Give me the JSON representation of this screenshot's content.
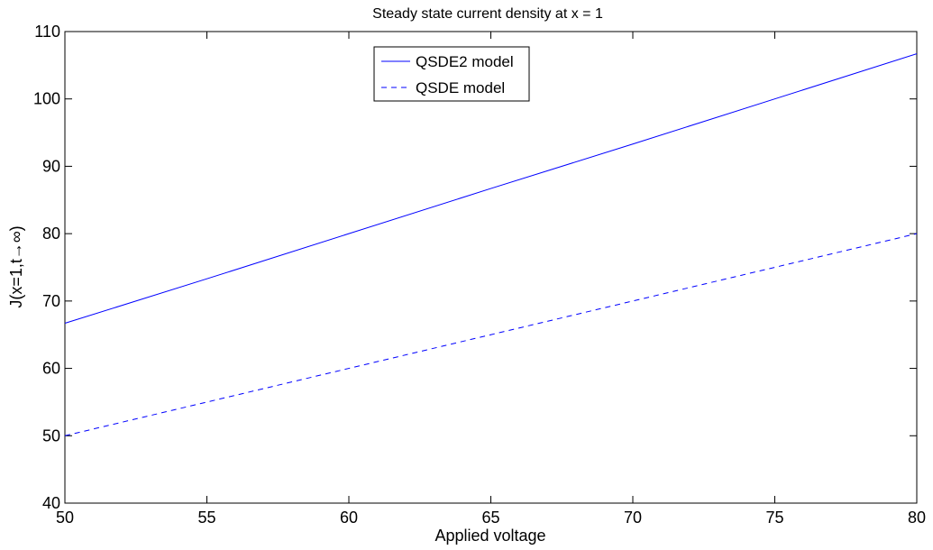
{
  "chart_data": {
    "type": "line",
    "title": "Steady state current density at x = 1",
    "xlabel": "Applied voltage",
    "ylabel": "J(x=1,t→∞)",
    "xlim": [
      50,
      80
    ],
    "ylim": [
      40,
      110
    ],
    "xticks": [
      50,
      55,
      60,
      65,
      70,
      75,
      80
    ],
    "yticks": [
      40,
      50,
      60,
      70,
      80,
      90,
      100,
      110
    ],
    "grid": false,
    "legend_position": "top-center",
    "series": [
      {
        "name": "QSDE2 model",
        "style": "solid",
        "color": "#0000ff",
        "x": [
          50,
          55,
          60,
          65,
          70,
          75,
          80
        ],
        "y": [
          66.7,
          73.3,
          80.0,
          86.7,
          93.3,
          100.0,
          106.7
        ]
      },
      {
        "name": "QSDE model",
        "style": "dashed",
        "color": "#0000ff",
        "x": [
          50,
          55,
          60,
          65,
          70,
          75,
          80
        ],
        "y": [
          50.0,
          55.0,
          60.0,
          65.0,
          70.0,
          75.0,
          80.0
        ]
      }
    ]
  }
}
